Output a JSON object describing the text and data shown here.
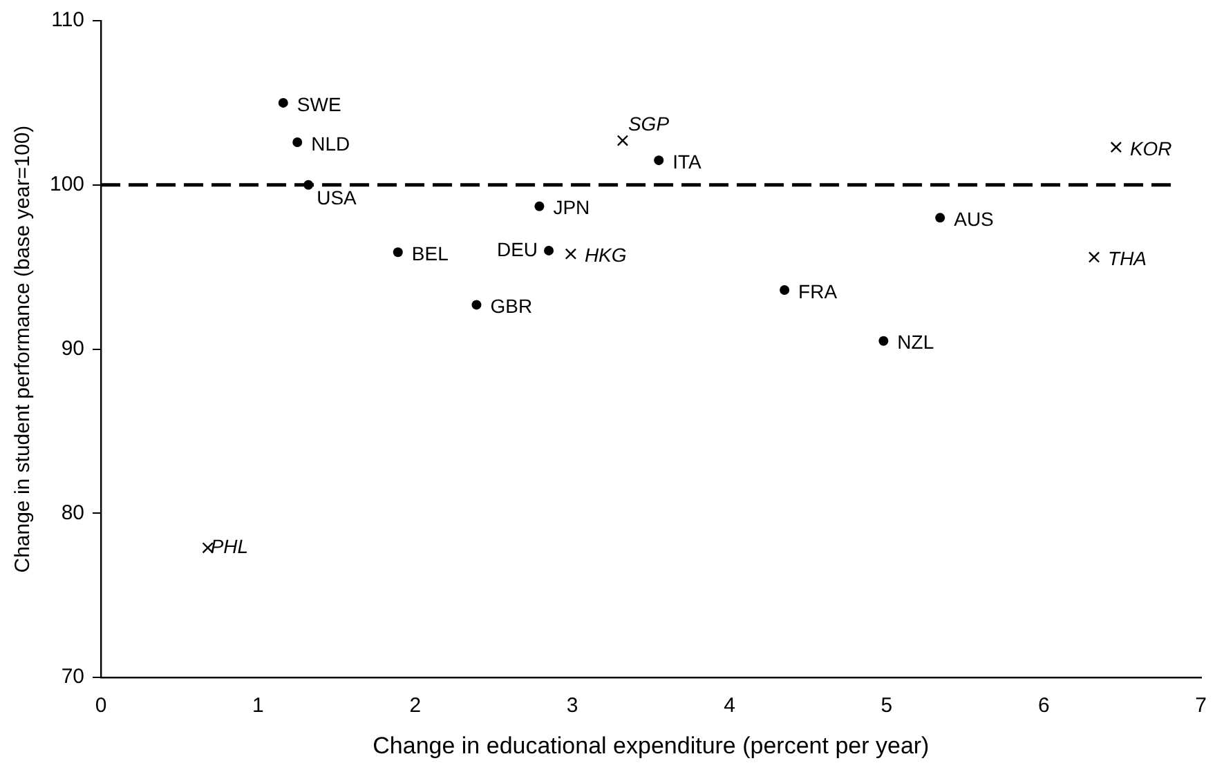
{
  "chart_data": {
    "type": "scatter",
    "xlabel": "Change in educational expenditure (percent per year)",
    "ylabel": "Change in student performance (base year=100)",
    "xlim": [
      0,
      7
    ],
    "xticks": [
      0,
      1,
      2,
      3,
      4,
      5,
      6,
      7
    ],
    "ylim": [
      70,
      110
    ],
    "yticks": [
      70,
      80,
      90,
      100,
      110
    ],
    "grid": false,
    "legend": false,
    "series": [
      {
        "color": "#000000",
        "marker": "circle",
        "x": [
          1.16,
          1.25,
          1.32,
          1.89,
          2.39,
          2.79,
          2.85,
          3.55,
          4.35,
          4.98,
          5.34
        ],
        "values": [
          105,
          102.6,
          100,
          95.9,
          92.7,
          98.7,
          96,
          101.5,
          93.6,
          90.5,
          98
        ]
      },
      {
        "color": "#000000",
        "marker": "cross",
        "x": [
          0.68,
          2.99,
          3.32,
          6.32,
          6.46
        ],
        "values": [
          77.9,
          95.8,
          102.7,
          95.6,
          102.3
        ]
      }
    ],
    "ref_lines": [
      {
        "axis": "y",
        "value": 100,
        "color": "#000000",
        "line_style": "dashed"
      }
    ],
    "annotations": [
      {
        "text": "SWE",
        "x": 1.16,
        "y": 105
      },
      {
        "text": "NLD",
        "x": 1.25,
        "y": 102.6
      },
      {
        "text": "USA",
        "x": 1.32,
        "y": 100
      },
      {
        "text": "BEL",
        "x": 1.89,
        "y": 95.9
      },
      {
        "text": "GBR",
        "x": 2.39,
        "y": 92.7
      },
      {
        "text": "JPN",
        "x": 2.79,
        "y": 98.7
      },
      {
        "text": "DEU",
        "x": 2.85,
        "y": 96
      },
      {
        "text": "ITA",
        "x": 3.55,
        "y": 101.5
      },
      {
        "text": "FRA",
        "x": 4.35,
        "y": 93.6
      },
      {
        "text": "NZL",
        "x": 4.98,
        "y": 90.5
      },
      {
        "text": "AUS",
        "x": 5.34,
        "y": 98
      },
      {
        "text": "PHL",
        "x": 0.68,
        "y": 77.9
      },
      {
        "text": "HKG",
        "x": 2.99,
        "y": 95.8
      },
      {
        "text": "SGP",
        "x": 3.32,
        "y": 102.7
      },
      {
        "text": "THA",
        "x": 6.32,
        "y": 95.6
      },
      {
        "text": "KOR",
        "x": 6.46,
        "y": 102.3
      }
    ]
  }
}
